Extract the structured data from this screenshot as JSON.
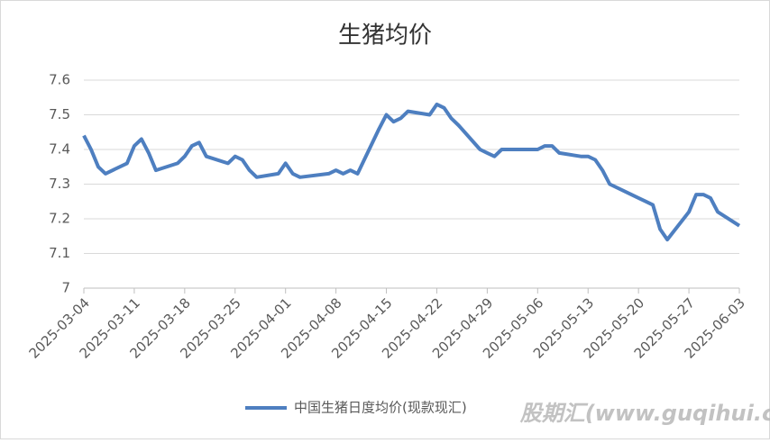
{
  "chart_data": {
    "type": "line",
    "title": "生猪均价",
    "x": [
      "2025-03-04",
      "2025-03-05",
      "2025-03-06",
      "2025-03-07",
      "2025-03-10",
      "2025-03-11",
      "2025-03-12",
      "2025-03-13",
      "2025-03-14",
      "2025-03-17",
      "2025-03-18",
      "2025-03-19",
      "2025-03-20",
      "2025-03-21",
      "2025-03-24",
      "2025-03-25",
      "2025-03-26",
      "2025-03-27",
      "2025-03-28",
      "2025-03-31",
      "2025-04-01",
      "2025-04-02",
      "2025-04-03",
      "2025-04-07",
      "2025-04-08",
      "2025-04-09",
      "2025-04-10",
      "2025-04-11",
      "2025-04-14",
      "2025-04-15",
      "2025-04-16",
      "2025-04-17",
      "2025-04-18",
      "2025-04-21",
      "2025-04-22",
      "2025-04-23",
      "2025-04-24",
      "2025-04-25",
      "2025-04-28",
      "2025-04-29",
      "2025-04-30",
      "2025-05-01",
      "2025-05-06",
      "2025-05-07",
      "2025-05-08",
      "2025-05-09",
      "2025-05-12",
      "2025-05-13",
      "2025-05-14",
      "2025-05-15",
      "2025-05-16",
      "2025-05-19",
      "2025-05-20",
      "2025-05-21",
      "2025-05-22",
      "2025-05-23",
      "2025-05-24",
      "2025-05-27",
      "2025-05-28",
      "2025-05-29",
      "2025-05-30",
      "2025-05-31",
      "2025-06-03"
    ],
    "series": [
      {
        "name": "中国生猪日度均价(现款现汇)",
        "color": "#4e7fc0",
        "values": [
          7.44,
          7.4,
          7.35,
          7.33,
          7.36,
          7.41,
          7.43,
          7.39,
          7.34,
          7.36,
          7.38,
          7.41,
          7.42,
          7.38,
          7.36,
          7.38,
          7.37,
          7.34,
          7.32,
          7.33,
          7.36,
          7.33,
          7.32,
          7.33,
          7.34,
          7.33,
          7.34,
          7.33,
          7.46,
          7.5,
          7.48,
          7.49,
          7.51,
          7.5,
          7.53,
          7.52,
          7.49,
          7.47,
          7.4,
          7.39,
          7.38,
          7.4,
          7.4,
          7.41,
          7.41,
          7.39,
          7.38,
          7.38,
          7.37,
          7.34,
          7.3,
          7.27,
          7.26,
          7.25,
          7.24,
          7.17,
          7.14,
          7.22,
          7.27,
          7.27,
          7.26,
          7.22,
          7.18
        ]
      }
    ],
    "xlim": [
      "2025-03-04",
      "2025-06-03"
    ],
    "xticks": [
      "2025-03-04",
      "2025-03-11",
      "2025-03-18",
      "2025-03-25",
      "2025-04-01",
      "2025-04-08",
      "2025-04-15",
      "2025-04-22",
      "2025-04-29",
      "2025-05-06",
      "2025-05-13",
      "2025-05-20",
      "2025-05-27",
      "2025-06-03"
    ],
    "ylim": [
      7,
      7.6
    ],
    "yticks": [
      7,
      7.1,
      7.2,
      7.3,
      7.4,
      7.5,
      7.6
    ],
    "grid": true,
    "legend": "bottom",
    "watermark": "股期汇(www.guqihui.cn)"
  }
}
